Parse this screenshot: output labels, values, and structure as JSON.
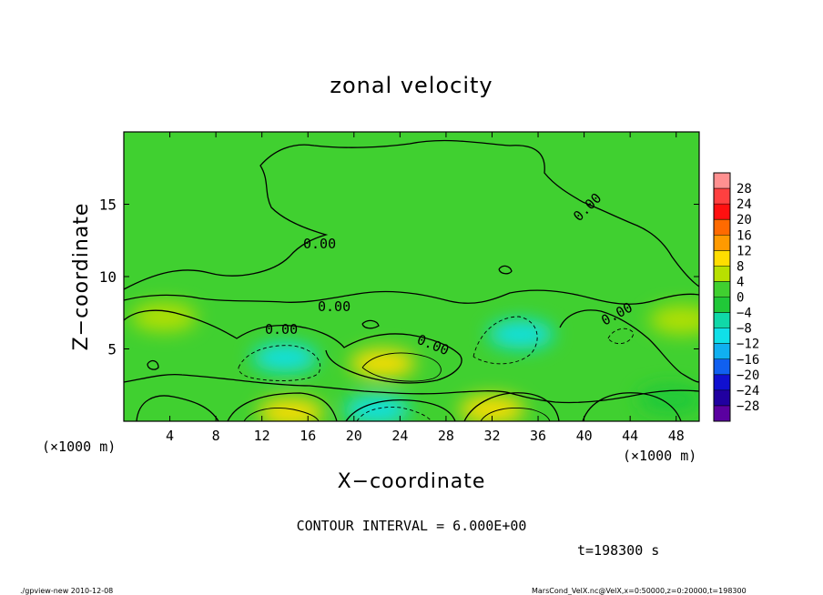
{
  "chart_data": {
    "type": "heatmap",
    "title": "zonal velocity",
    "xlabel": "X−coordinate",
    "ylabel": "Z−coordinate",
    "x_unit_left": "(×1000 m)",
    "x_unit_right": "(×1000 m)",
    "xlim": [
      0,
      50
    ],
    "ylim": [
      0,
      20
    ],
    "x_ticks": [
      4,
      8,
      12,
      16,
      20,
      24,
      28,
      32,
      36,
      40,
      44,
      48
    ],
    "x_tick_labels": [
      "4",
      "8",
      "12",
      "16",
      "20",
      "24",
      "28",
      "32",
      "36",
      "40",
      "44",
      "48"
    ],
    "y_ticks": [
      5,
      10,
      15
    ],
    "y_tick_labels": [
      "5",
      "10",
      "15"
    ],
    "colorbar": {
      "levels": [
        28,
        24,
        20,
        16,
        12,
        8,
        4,
        0,
        -4,
        -8,
        -12,
        -16,
        -20,
        -24,
        -28
      ],
      "labels": [
        "28",
        "24",
        "20",
        "16",
        "12",
        "8",
        "4",
        "0",
        "−4",
        "−8",
        "−12",
        "−16",
        "−20",
        "−24",
        "−28"
      ],
      "colors": [
        "#ff9090",
        "#ff4040",
        "#ff1010",
        "#ff6a00",
        "#ff9a00",
        "#ffdd00",
        "#b8e000",
        "#40d030",
        "#20c838",
        "#10d8a8",
        "#10e0e8",
        "#10b0f0",
        "#1060f0",
        "#1010d0",
        "#2000a0",
        "#5a00a0"
      ]
    },
    "contour_labels": [
      "0.00",
      "0.00",
      "0.00",
      "0.00",
      "0.00",
      "0.00"
    ],
    "contour_interval": "CONTOUR INTERVAL = 6.000E+00",
    "time_label": "t=198300 s",
    "blobs": [
      {
        "x": 14.0,
        "z": 4.4,
        "value": -12
      },
      {
        "x": 22.5,
        "z": 4.0,
        "value": 9
      },
      {
        "x": 34.5,
        "z": 6.0,
        "value": -11
      },
      {
        "x": 14.5,
        "z": 0.6,
        "value": 10
      },
      {
        "x": 22.0,
        "z": 0.8,
        "value": -12
      },
      {
        "x": 32.0,
        "z": 0.8,
        "value": 8
      },
      {
        "x": 48.5,
        "z": 7.0,
        "value": 7
      },
      {
        "x": 3.5,
        "z": 7.2,
        "value": 4
      },
      {
        "x": 47.5,
        "z": 1.5,
        "value": -4
      }
    ]
  },
  "footer": {
    "left": "./gpview-new  2010-12-08",
    "right": "MarsCond_VelX.nc@VelX,x=0:50000,z=0:20000,t=198300"
  }
}
